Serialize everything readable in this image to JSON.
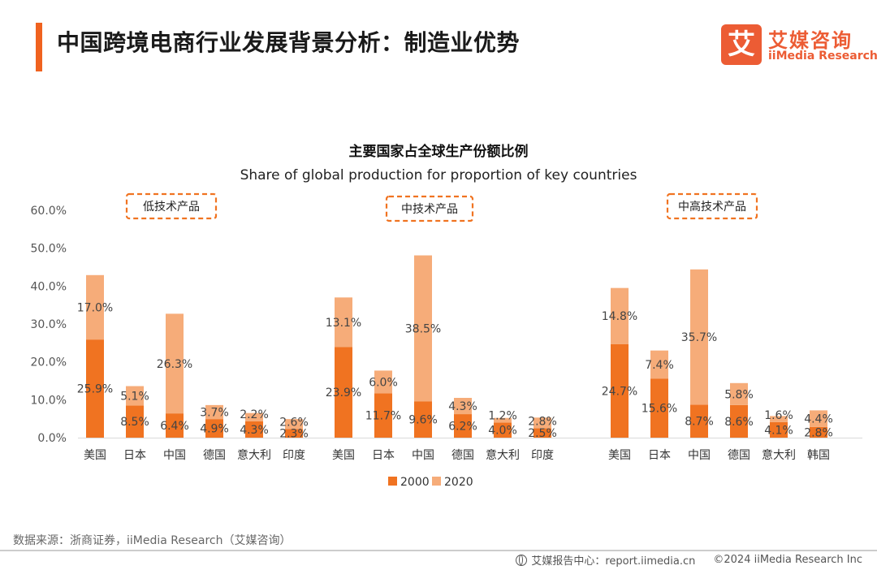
{
  "header": {
    "title": "中国跨境电商行业发展背景分析：制造业优势",
    "logo_mark": "艾",
    "logo_cn": "艾媒咨询",
    "logo_en": "iiMedia Research"
  },
  "chart_data": {
    "type": "bar",
    "stacked": true,
    "title": "主要国家占全球生产份额比例",
    "subtitle": "Share of global production for proportion of key countries",
    "ylim": [
      0,
      60
    ],
    "yticks": [
      "0.0%",
      "10.0%",
      "20.0%",
      "30.0%",
      "40.0%",
      "50.0%",
      "60.0%"
    ],
    "legend": [
      {
        "name": "2000",
        "color": "#f07321"
      },
      {
        "name": "2020",
        "color": "#f6ac79"
      }
    ],
    "groups": [
      {
        "name": "低技术产品",
        "categories": [
          "美国",
          "日本",
          "中国",
          "德国",
          "意大利",
          "印度"
        ],
        "series": [
          {
            "name": "2000",
            "values": [
              25.9,
              8.5,
              6.4,
              4.9,
              4.3,
              2.3
            ]
          },
          {
            "name": "2020",
            "values": [
              17.0,
              5.1,
              26.3,
              3.7,
              2.2,
              2.6
            ]
          }
        ]
      },
      {
        "name": "中技术产品",
        "categories": [
          "美国",
          "日本",
          "中国",
          "德国",
          "意大利",
          "印度"
        ],
        "series": [
          {
            "name": "2000",
            "values": [
              23.9,
              11.7,
              9.6,
              6.2,
              4.0,
              2.5
            ]
          },
          {
            "name": "2020",
            "values": [
              13.1,
              6.0,
              38.5,
              4.3,
              1.2,
              2.8
            ]
          }
        ]
      },
      {
        "name": "中高技术产品",
        "categories": [
          "美国",
          "日本",
          "中国",
          "德国",
          "意大利",
          "韩国"
        ],
        "series": [
          {
            "name": "2000",
            "values": [
              24.7,
              15.6,
              8.7,
              8.6,
              4.1,
              2.8
            ]
          },
          {
            "name": "2020",
            "values": [
              14.8,
              7.4,
              35.7,
              5.8,
              1.6,
              4.4
            ]
          }
        ]
      }
    ]
  },
  "source": "数据来源：浙商证券，iiMedia Research（艾媒咨询）",
  "footer": {
    "site": "艾媒报告中心：report.iimedia.cn",
    "copyright": "©2024  iiMedia Research  Inc"
  }
}
